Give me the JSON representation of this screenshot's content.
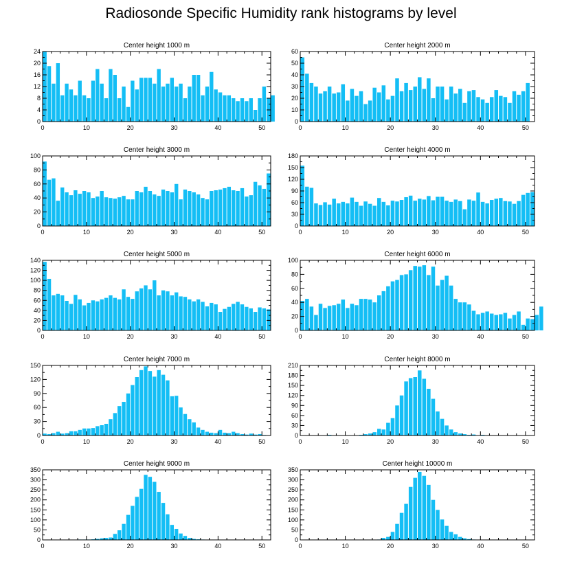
{
  "title": "Radiosonde Specific Humidity rank histograms by level",
  "colors": {
    "bar": "#14bef5",
    "axis": "#000000",
    "background": "#ffffff"
  },
  "chart_data": [
    {
      "type": "bar",
      "title": "Center height 1000 m",
      "xlim": [
        0,
        52
      ],
      "ylim": [
        0,
        24
      ],
      "xticks": [
        0,
        10,
        20,
        30,
        40,
        50
      ],
      "yticks": [
        0,
        4,
        8,
        12,
        16,
        20,
        24
      ],
      "values": [
        24,
        19,
        13,
        20,
        9,
        13,
        11,
        9,
        14,
        9,
        8,
        14,
        18,
        13,
        8,
        18,
        16,
        8,
        12,
        5,
        14,
        11,
        15,
        15,
        15,
        13,
        18,
        12,
        13,
        15,
        12,
        13,
        8,
        12,
        16,
        16,
        9,
        12,
        17,
        11,
        10,
        9,
        9,
        8,
        7,
        8,
        7,
        8,
        4,
        8,
        12,
        8,
        9
      ]
    },
    {
      "type": "bar",
      "title": "Center height 2000 m",
      "xlim": [
        0,
        52
      ],
      "ylim": [
        0,
        60
      ],
      "xticks": [
        0,
        10,
        20,
        30,
        40,
        50
      ],
      "yticks": [
        0,
        10,
        20,
        30,
        40,
        50,
        60
      ],
      "values": [
        55,
        41,
        33,
        30,
        24,
        26,
        30,
        24,
        25,
        32,
        18,
        28,
        22,
        26,
        15,
        18,
        29,
        25,
        31,
        19,
        22,
        37,
        26,
        33,
        27,
        30,
        38,
        28,
        37,
        20,
        30,
        30,
        19,
        30,
        24,
        28,
        16,
        26,
        27,
        21,
        19,
        16,
        21,
        27,
        22,
        21,
        16,
        26,
        23,
        26,
        33
      ]
    },
    {
      "type": "bar",
      "title": "Center height 3000 m",
      "xlim": [
        0,
        52
      ],
      "ylim": [
        0,
        100
      ],
      "xticks": [
        0,
        10,
        20,
        30,
        40,
        50
      ],
      "yticks": [
        0,
        20,
        40,
        60,
        80,
        100
      ],
      "values": [
        92,
        66,
        68,
        36,
        55,
        48,
        44,
        51,
        46,
        50,
        48,
        40,
        42,
        50,
        41,
        40,
        39,
        41,
        43,
        38,
        38,
        50,
        48,
        56,
        50,
        45,
        43,
        52,
        50,
        48,
        60,
        38,
        52,
        50,
        48,
        45,
        40,
        38,
        50,
        51,
        52,
        54,
        56,
        51,
        50,
        54,
        42,
        44,
        63,
        58,
        53,
        75
      ]
    },
    {
      "type": "bar",
      "title": "Center height 4000 m",
      "xlim": [
        0,
        52
      ],
      "ylim": [
        0,
        180
      ],
      "xticks": [
        0,
        10,
        20,
        30,
        40,
        50
      ],
      "yticks": [
        0,
        30,
        60,
        90,
        120,
        150,
        180
      ],
      "values": [
        155,
        101,
        98,
        58,
        54,
        61,
        55,
        70,
        58,
        62,
        58,
        73,
        62,
        52,
        63,
        57,
        52,
        72,
        62,
        53,
        65,
        63,
        67,
        74,
        78,
        65,
        70,
        68,
        77,
        66,
        75,
        75,
        65,
        62,
        68,
        64,
        43,
        68,
        65,
        86,
        62,
        58,
        67,
        70,
        72,
        64,
        63,
        57,
        64,
        80,
        85,
        87
      ]
    },
    {
      "type": "bar",
      "title": "Center height 5000 m",
      "xlim": [
        0,
        52
      ],
      "ylim": [
        0,
        140
      ],
      "xticks": [
        0,
        10,
        20,
        30,
        40,
        50
      ],
      "yticks": [
        0,
        20,
        40,
        60,
        80,
        100,
        120,
        140
      ],
      "values": [
        137,
        103,
        70,
        73,
        70,
        59,
        53,
        71,
        62,
        50,
        55,
        60,
        58,
        62,
        65,
        70,
        65,
        62,
        82,
        67,
        63,
        78,
        84,
        90,
        82,
        100,
        70,
        80,
        78,
        70,
        76,
        68,
        67,
        62,
        58,
        62,
        57,
        48,
        55,
        52,
        37,
        43,
        47,
        53,
        57,
        52,
        47,
        44,
        37,
        46,
        44,
        42
      ]
    },
    {
      "type": "bar",
      "title": "Center height 6000 m",
      "xlim": [
        0,
        52
      ],
      "ylim": [
        0,
        100
      ],
      "xticks": [
        0,
        10,
        20,
        30,
        40,
        50
      ],
      "yticks": [
        0,
        20,
        40,
        60,
        80,
        100
      ],
      "values": [
        42,
        45,
        34,
        22,
        38,
        32,
        35,
        36,
        38,
        44,
        32,
        38,
        36,
        45,
        45,
        44,
        40,
        50,
        56,
        63,
        70,
        72,
        79,
        80,
        86,
        92,
        91,
        93,
        79,
        91,
        64,
        72,
        78,
        64,
        45,
        40,
        40,
        37,
        28,
        23,
        25,
        27,
        24,
        22,
        23,
        25,
        17,
        22,
        27,
        8,
        17,
        16,
        22,
        34
      ]
    },
    {
      "type": "bar",
      "title": "Center height 7000 m",
      "xlim": [
        0,
        52
      ],
      "ylim": [
        0,
        150
      ],
      "xticks": [
        0,
        10,
        20,
        30,
        40,
        50
      ],
      "yticks": [
        0,
        30,
        60,
        90,
        120,
        150
      ],
      "values": [
        4,
        3,
        5,
        8,
        4,
        5,
        9,
        9,
        12,
        15,
        15,
        16,
        20,
        22,
        25,
        35,
        48,
        63,
        72,
        90,
        108,
        125,
        140,
        148,
        138,
        126,
        140,
        130,
        118,
        84,
        85,
        60,
        46,
        35,
        28,
        17,
        12,
        8,
        6,
        5,
        12,
        6,
        5,
        8,
        5,
        3,
        2,
        4,
        2,
        3,
        1
      ]
    },
    {
      "type": "bar",
      "title": "Center height 8000 m",
      "xlim": [
        0,
        52
      ],
      "ylim": [
        0,
        210
      ],
      "xticks": [
        0,
        10,
        20,
        30,
        40,
        50
      ],
      "yticks": [
        0,
        30,
        60,
        90,
        120,
        150,
        180,
        210
      ],
      "values": [
        0,
        0,
        0,
        0,
        0,
        0,
        2,
        0,
        0,
        0,
        0,
        0,
        1,
        2,
        4,
        6,
        10,
        20,
        18,
        38,
        52,
        90,
        120,
        162,
        172,
        175,
        195,
        170,
        140,
        110,
        72,
        50,
        30,
        18,
        10,
        6,
        4,
        2,
        3,
        1,
        2,
        0,
        1,
        0,
        0,
        0,
        0,
        0,
        0,
        0,
        0
      ]
    },
    {
      "type": "bar",
      "title": "Center height 9000 m",
      "xlim": [
        0,
        52
      ],
      "ylim": [
        0,
        350
      ],
      "xticks": [
        0,
        10,
        20,
        30,
        40,
        50
      ],
      "yticks": [
        0,
        50,
        100,
        150,
        200,
        250,
        300,
        350
      ],
      "values": [
        0,
        0,
        0,
        0,
        0,
        0,
        0,
        1,
        2,
        2,
        2,
        3,
        5,
        8,
        10,
        12,
        30,
        48,
        80,
        125,
        170,
        215,
        255,
        325,
        315,
        290,
        240,
        185,
        128,
        75,
        55,
        32,
        20,
        10,
        5,
        3,
        2,
        1,
        0,
        0,
        0,
        0,
        0,
        0,
        0,
        0,
        0,
        0,
        0,
        0,
        0
      ]
    },
    {
      "type": "bar",
      "title": "Center height 10000 m",
      "xlim": [
        0,
        52
      ],
      "ylim": [
        0,
        350
      ],
      "xticks": [
        0,
        10,
        20,
        30,
        40,
        50
      ],
      "yticks": [
        0,
        50,
        100,
        150,
        200,
        250,
        300,
        350
      ],
      "values": [
        0,
        0,
        0,
        0,
        0,
        0,
        0,
        0,
        0,
        0,
        0,
        0,
        0,
        0,
        0,
        0,
        0,
        2,
        10,
        15,
        40,
        80,
        135,
        180,
        265,
        310,
        340,
        320,
        275,
        200,
        150,
        102,
        70,
        40,
        28,
        15,
        8,
        4,
        2,
        1,
        0,
        0,
        0,
        0,
        0,
        0,
        0,
        0,
        0,
        0,
        0
      ]
    }
  ]
}
